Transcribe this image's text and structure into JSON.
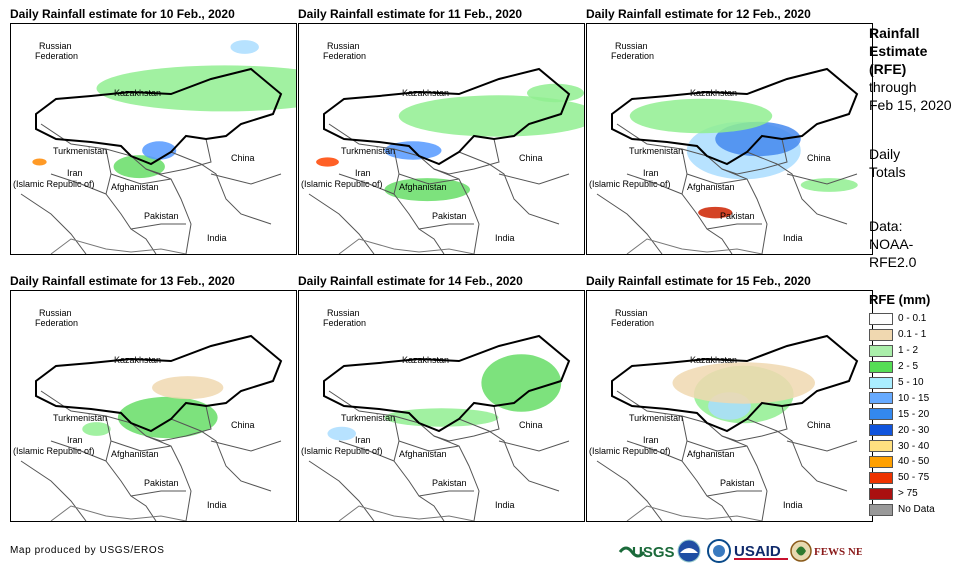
{
  "panels": [
    {
      "title": "Daily Rainfall estimate for 10 Feb., 2020",
      "rain": [
        [
          0.75,
          0.28,
          0.9,
          0.2,
          "#90ee90"
        ],
        [
          0.45,
          0.62,
          0.18,
          0.1,
          "#66dd66"
        ],
        [
          0.52,
          0.55,
          0.12,
          0.08,
          "#5599ff"
        ],
        [
          0.82,
          0.1,
          0.1,
          0.06,
          "#aaddff"
        ],
        [
          0.1,
          0.6,
          0.05,
          0.03,
          "#ff8800"
        ]
      ]
    },
    {
      "title": "Daily Rainfall estimate for 11 Feb., 2020",
      "rain": [
        [
          0.7,
          0.4,
          0.7,
          0.18,
          "#90ee90"
        ],
        [
          0.45,
          0.72,
          0.3,
          0.1,
          "#66dd66"
        ],
        [
          0.4,
          0.55,
          0.2,
          0.08,
          "#5599ff"
        ],
        [
          0.1,
          0.6,
          0.08,
          0.04,
          "#ff4400"
        ],
        [
          0.9,
          0.3,
          0.2,
          0.08,
          "#90ee90"
        ]
      ]
    },
    {
      "title": "Daily Rainfall estimate for 12 Feb., 2020",
      "rain": [
        [
          0.55,
          0.55,
          0.4,
          0.25,
          "#aaddff"
        ],
        [
          0.6,
          0.5,
          0.3,
          0.15,
          "#4488ee"
        ],
        [
          0.45,
          0.82,
          0.12,
          0.05,
          "#cc2200"
        ],
        [
          0.4,
          0.4,
          0.5,
          0.15,
          "#90ee90"
        ],
        [
          0.85,
          0.7,
          0.2,
          0.06,
          "#90ee90"
        ]
      ]
    },
    {
      "title": "Daily Rainfall estimate for 13 Feb., 2020",
      "rain": [
        [
          0.55,
          0.55,
          0.35,
          0.18,
          "#66dd66"
        ],
        [
          0.62,
          0.42,
          0.25,
          0.1,
          "#f0d8b0"
        ],
        [
          0.3,
          0.6,
          0.1,
          0.06,
          "#90ee90"
        ]
      ]
    },
    {
      "title": "Daily Rainfall estimate for 14 Feb., 2020",
      "rain": [
        [
          0.78,
          0.4,
          0.28,
          0.25,
          "#66dd66"
        ],
        [
          0.5,
          0.55,
          0.4,
          0.08,
          "#90ee90"
        ],
        [
          0.15,
          0.62,
          0.1,
          0.06,
          "#aaddff"
        ]
      ]
    },
    {
      "title": "Daily Rainfall estimate for 15 Feb., 2020",
      "rain": [
        [
          0.55,
          0.45,
          0.35,
          0.25,
          "#90ee90"
        ],
        [
          0.5,
          0.5,
          0.15,
          0.12,
          "#aaddff"
        ],
        [
          0.55,
          0.4,
          0.5,
          0.18,
          "#f0d8b0"
        ]
      ]
    }
  ],
  "map_labels": {
    "russia_1": "Russian",
    "russia_2": "Federation",
    "kazakhstan": "Kazakhstan",
    "turkmenistan": "Turkmenistan",
    "iran_1": "Iran",
    "iran_2": "(Islamic Republic of)",
    "afghanistan": "Afghanistan",
    "pakistan": "Pakistan",
    "china": "China",
    "india": "India"
  },
  "side": {
    "title_1": "Rainfall",
    "title_2": "Estimate",
    "title_3": "(RFE)",
    "through": "through",
    "date": "Feb 15, 2020",
    "daily": "Daily",
    "totals": "Totals",
    "data_1": "Data:",
    "data_2": "NOAA-",
    "data_3": "RFE2.0"
  },
  "legend": {
    "title": "RFE (mm)",
    "items": [
      {
        "label": "0 - 0.1",
        "color": "#ffffff"
      },
      {
        "label": "0.1 - 1",
        "color": "#f0d8b0"
      },
      {
        "label": "1 - 2",
        "color": "#aaeeaa"
      },
      {
        "label": "2 - 5",
        "color": "#55dd55"
      },
      {
        "label": "5 - 10",
        "color": "#aaeeff"
      },
      {
        "label": "10 - 15",
        "color": "#66aaff"
      },
      {
        "label": "15 - 20",
        "color": "#3388ee"
      },
      {
        "label": "20 - 30",
        "color": "#1155dd"
      },
      {
        "label": "30 - 40",
        "color": "#ffe080"
      },
      {
        "label": "40 - 50",
        "color": "#ffa000"
      },
      {
        "label": "50 - 75",
        "color": "#ee3300"
      },
      {
        "label": "> 75",
        "color": "#aa1010"
      },
      {
        "label": "No Data",
        "color": "#999999"
      }
    ]
  },
  "credit": "Map produced by USGS/EROS",
  "logos": {
    "usgs": "USGS",
    "usaid": "USAID",
    "fewsnet": "FEWS NET"
  }
}
